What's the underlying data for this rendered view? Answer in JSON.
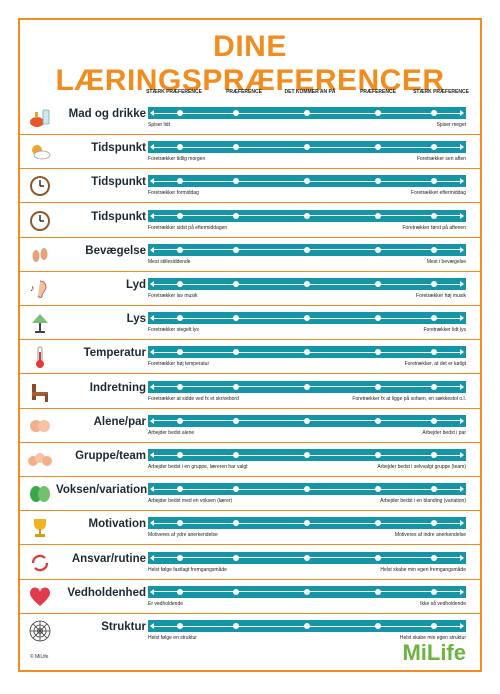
{
  "title": "DINE LÆRINGSPRÆFERENCER",
  "scale": [
    "STÆRK PRÆFERENCE",
    "PRÆFERENCE",
    "DET KOMMER AN PÅ",
    "PRÆFERENCE",
    "STÆRK PRÆFERENCE"
  ],
  "rows": [
    {
      "label": "Mad og drikke",
      "icon": "food-drink-icon",
      "left": "Spiser lidt",
      "right": "Spiser meget"
    },
    {
      "label": "Tidspunkt",
      "icon": "sun-cloud-icon",
      "left": "Foretrækker tidlig morgen",
      "right": "Foretrækker sen aften"
    },
    {
      "label": "Tidspunkt",
      "icon": "clock-icon",
      "left": "Foretrækker formiddag",
      "right": "Foretrækker eftermiddag"
    },
    {
      "label": "Tidspunkt",
      "icon": "clock-icon",
      "left": "Foretrækker sidst på eftermiddagen",
      "right": "Foretrækker først på aftenen"
    },
    {
      "label": "Bevægelse",
      "icon": "footprints-icon",
      "left": "Mest stillesiddende",
      "right": "Mest i bevægelse"
    },
    {
      "label": "Lyd",
      "icon": "ear-music-icon",
      "left": "Foretrækker lav musik",
      "right": "Foretrækker høj musik"
    },
    {
      "label": "Lys",
      "icon": "lamp-icon",
      "left": "Foretrækker stegelt lys",
      "right": "Foretrækker lidt lys"
    },
    {
      "label": "Temperatur",
      "icon": "thermometer-icon",
      "left": "Foretrækker høj temperatur",
      "right": "Foretrækker, at det er køligt"
    },
    {
      "label": "Indretning",
      "icon": "chair-icon",
      "left": "Foretrækker at sidde ved fx et skrivebord",
      "right": "Foretrækker fx at ligge på sofaen, en sækkestol o.l."
    },
    {
      "label": "Alene/par",
      "icon": "heads-pair-icon",
      "left": "Arbejder bedst alene",
      "right": "Arbejder bedst i par"
    },
    {
      "label": "Gruppe/team",
      "icon": "heads-group-icon",
      "left": "Arbejder bedst i en gruppe, læreren har valgt",
      "right": "Arbejder bedst i selvvalgt gruppe (team)"
    },
    {
      "label": "Voksen/variation",
      "icon": "masks-icon",
      "left": "Arbejder bedst med en voksen (lærer)",
      "right": "Arbejder bedst i en blanding (variation)"
    },
    {
      "label": "Motivation",
      "icon": "trophy-icon",
      "left": "Motiveres af ydre anerkendelse",
      "right": "Motiveres af indre anerkendelse"
    },
    {
      "label": "Ansvar/rutine",
      "icon": "cycle-arrows-icon",
      "left": "Helst følge fastlagt fremgangsmåde",
      "right": "Helst skabe min egen fremgangsmåde"
    },
    {
      "label": "Vedholdenhed",
      "icon": "heart-icon",
      "left": "Er vedholdende",
      "right": "Ikke så vedholdende"
    },
    {
      "label": "Struktur",
      "icon": "spiderweb-icon",
      "left": "Helst følge en struktur",
      "right": "Helst skabe min egen struktur"
    }
  ],
  "copyright": "© MiLife",
  "logo": "MiLife",
  "colors": {
    "accent": "#f28c1e",
    "bar": "#1596a6",
    "logo": "#6cb33f"
  }
}
